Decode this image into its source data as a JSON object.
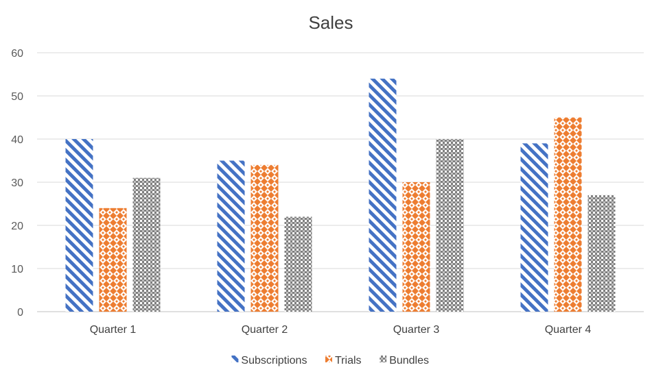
{
  "chart_data": {
    "type": "bar",
    "title": "Sales",
    "xlabel": "",
    "ylabel": "",
    "categories": [
      "Quarter 1",
      "Quarter 2",
      "Quarter 3",
      "Quarter 4"
    ],
    "series": [
      {
        "name": "Subscriptions",
        "values": [
          40,
          35,
          54,
          39
        ],
        "color": "#4472c4",
        "pattern": "diagonal-stripes"
      },
      {
        "name": "Trials",
        "values": [
          24,
          34,
          30,
          45
        ],
        "color": "#ed7d31",
        "pattern": "diamonds"
      },
      {
        "name": "Bundles",
        "values": [
          31,
          22,
          40,
          27
        ],
        "color": "#7f7f7f",
        "pattern": "checkerboard"
      }
    ],
    "ylim": [
      0,
      60
    ],
    "yticks": [
      0,
      10,
      20,
      30,
      40,
      50,
      60
    ],
    "grid": true,
    "legend_position": "bottom"
  }
}
